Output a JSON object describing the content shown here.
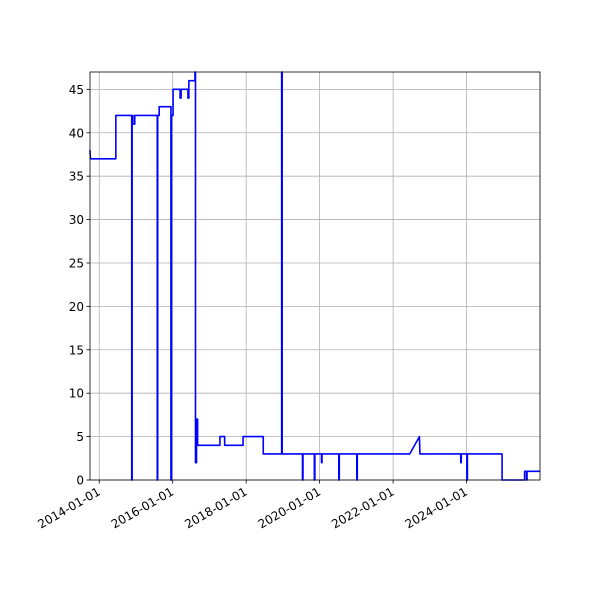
{
  "chart_data": {
    "type": "line",
    "title": "",
    "xlabel": "",
    "ylabel": "",
    "xlim": [
      "2013-10-01",
      "2026-01-01"
    ],
    "ylim": [
      0,
      47
    ],
    "grid": true,
    "x_ticks": [
      "2014-01-01",
      "2016-01-01",
      "2018-01-01",
      "2020-01-01",
      "2022-01-01",
      "2024-01-01"
    ],
    "y_ticks": [
      0,
      5,
      10,
      15,
      20,
      25,
      30,
      35,
      40,
      45
    ],
    "colors": {
      "series": "#0000ff",
      "grid": "#b0b0b0",
      "axes": "#000000"
    },
    "series": [
      {
        "points": [
          [
            "2013-10-01",
            38
          ],
          [
            "2013-10-05",
            37
          ],
          [
            "2014-06-15",
            37
          ],
          [
            "2014-06-15",
            42
          ],
          [
            "2014-11-20",
            42
          ],
          [
            "2014-11-20",
            0
          ],
          [
            "2014-11-24",
            0
          ],
          [
            "2014-11-24",
            42
          ],
          [
            "2014-12-01",
            42
          ],
          [
            "2014-12-01",
            41
          ],
          [
            "2014-12-20",
            41
          ],
          [
            "2014-12-20",
            42
          ],
          [
            "2015-08-01",
            42
          ],
          [
            "2015-08-01",
            0
          ],
          [
            "2015-08-05",
            0
          ],
          [
            "2015-08-05",
            42
          ],
          [
            "2015-08-20",
            42
          ],
          [
            "2015-08-20",
            43
          ],
          [
            "2015-12-15",
            43
          ],
          [
            "2015-12-15",
            0
          ],
          [
            "2015-12-20",
            0
          ],
          [
            "2015-12-20",
            42
          ],
          [
            "2016-01-05",
            42
          ],
          [
            "2016-01-05",
            45
          ],
          [
            "2016-03-15",
            45
          ],
          [
            "2016-03-15",
            44
          ],
          [
            "2016-03-25",
            44
          ],
          [
            "2016-03-25",
            45
          ],
          [
            "2016-06-01",
            45
          ],
          [
            "2016-06-01",
            44
          ],
          [
            "2016-06-10",
            44
          ],
          [
            "2016-06-10",
            46
          ],
          [
            "2016-08-10",
            46
          ],
          [
            "2016-08-10",
            47
          ],
          [
            "2016-08-15",
            47
          ],
          [
            "2016-08-15",
            2
          ],
          [
            "2016-08-25",
            2
          ],
          [
            "2016-08-25",
            7
          ],
          [
            "2016-09-05",
            7
          ],
          [
            "2016-09-05",
            4
          ],
          [
            "2017-04-15",
            4
          ],
          [
            "2017-04-15",
            5
          ],
          [
            "2017-06-01",
            5
          ],
          [
            "2017-06-01",
            4
          ],
          [
            "2017-12-01",
            4
          ],
          [
            "2017-12-01",
            5
          ],
          [
            "2018-06-20",
            5
          ],
          [
            "2018-06-20",
            3
          ],
          [
            "2018-12-20",
            3
          ],
          [
            "2018-12-20",
            47
          ],
          [
            "2018-12-25",
            47
          ],
          [
            "2018-12-25",
            3
          ],
          [
            "2019-07-15",
            3
          ],
          [
            "2019-07-15",
            0
          ],
          [
            "2019-07-20",
            0
          ],
          [
            "2019-07-20",
            3
          ],
          [
            "2019-11-10",
            3
          ],
          [
            "2019-11-10",
            0
          ],
          [
            "2019-11-15",
            0
          ],
          [
            "2019-11-15",
            3
          ],
          [
            "2020-01-20",
            3
          ],
          [
            "2020-01-20",
            2
          ],
          [
            "2020-01-25",
            2
          ],
          [
            "2020-01-25",
            3
          ],
          [
            "2020-07-10",
            3
          ],
          [
            "2020-07-10",
            0
          ],
          [
            "2020-07-15",
            0
          ],
          [
            "2020-07-15",
            3
          ],
          [
            "2021-01-05",
            3
          ],
          [
            "2021-01-05",
            0
          ],
          [
            "2021-01-10",
            0
          ],
          [
            "2021-01-10",
            3
          ],
          [
            "2022-06-15",
            3
          ],
          [
            "2022-09-20",
            5
          ],
          [
            "2022-09-25",
            3
          ],
          [
            "2023-11-05",
            3
          ],
          [
            "2023-11-05",
            2
          ],
          [
            "2023-11-10",
            2
          ],
          [
            "2023-11-10",
            3
          ],
          [
            "2024-01-05",
            3
          ],
          [
            "2024-01-05",
            0
          ],
          [
            "2024-01-10",
            0
          ],
          [
            "2024-01-10",
            3
          ],
          [
            "2024-12-20",
            3
          ],
          [
            "2024-12-20",
            0
          ],
          [
            "2025-08-01",
            0
          ],
          [
            "2025-08-01",
            1
          ],
          [
            "2025-08-20",
            1
          ],
          [
            "2025-08-20",
            0
          ],
          [
            "2025-08-25",
            0
          ],
          [
            "2025-08-25",
            1
          ],
          [
            "2026-01-01",
            1
          ]
        ]
      }
    ]
  }
}
